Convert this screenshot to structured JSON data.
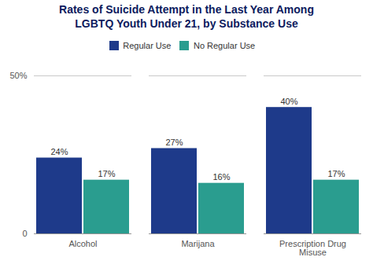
{
  "chart_data": {
    "type": "bar",
    "title": "Rates of Suicide Attempt in the Last Year Among\nLGBTQ Youth Under 21, by Substance Use",
    "categories": [
      "Alcohol",
      "Marijana",
      "Prescription Drug\nMisuse"
    ],
    "series": [
      {
        "name": "Regular Use",
        "color": "#1e3a8a",
        "values": [
          24,
          27,
          40
        ],
        "value_labels": [
          "24%",
          "27%",
          "40%"
        ]
      },
      {
        "name": "No Regular Use",
        "color": "#2a9d8f",
        "values": [
          17,
          16,
          17
        ],
        "value_labels": [
          "17%",
          "16%",
          "17%"
        ]
      }
    ],
    "ylim": [
      0,
      50
    ],
    "yticks": [
      0,
      {
        "value": 50,
        "label": "50%"
      }
    ],
    "grid": true,
    "legend": "top",
    "data_labels": true
  }
}
